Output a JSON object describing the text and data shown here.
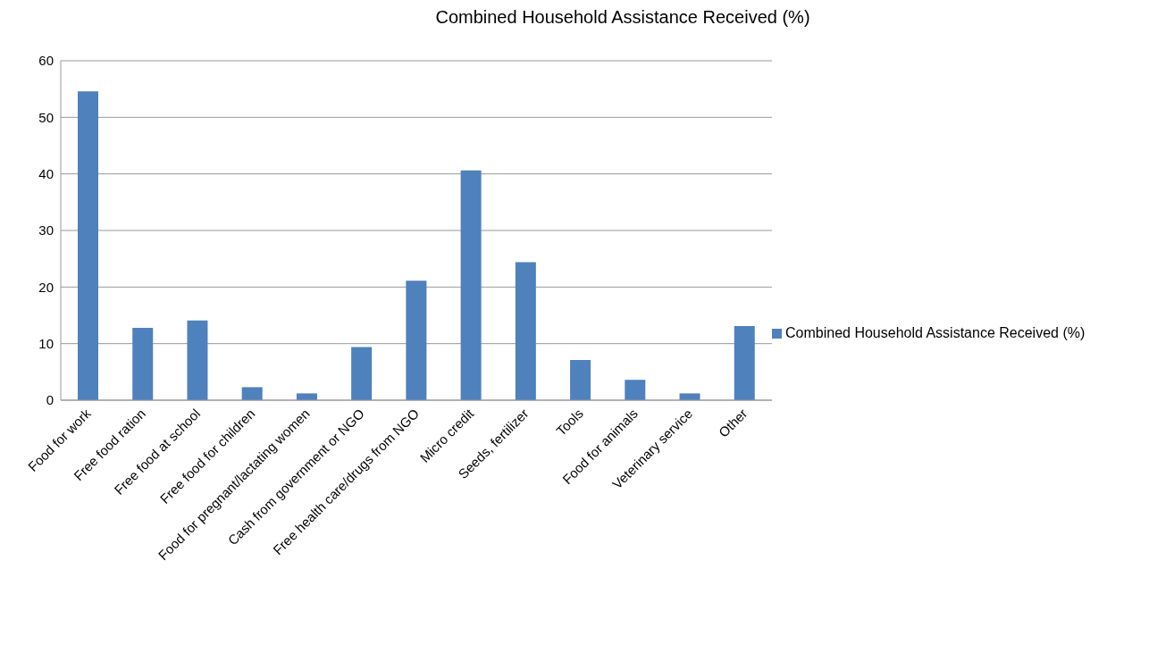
{
  "chart_data": {
    "type": "bar",
    "title": "Combined Household Assistance Received (%)",
    "categories": [
      "Food for work",
      "Free food ration",
      "Free food at school",
      "Free food for children",
      "Food for pregnant/lactating women",
      "Cash from government or NGO",
      "Free health care/drugs from NGO",
      "Micro credit",
      "Seeds, fertilizer",
      "Tools",
      "Food for animals",
      "Veterinary service",
      "Other"
    ],
    "series": [
      {
        "name": "Combined Household Assistance Received (%)",
        "color": "#4f81bd",
        "values": [
          54.6,
          12.8,
          14.1,
          2.3,
          1.2,
          9.4,
          21.1,
          40.6,
          24.4,
          7.1,
          3.6,
          1.2,
          13.1
        ]
      }
    ],
    "ylim": [
      0,
      60
    ],
    "yticks": [
      0,
      10,
      20,
      30,
      40,
      50,
      60
    ],
    "grid": "y",
    "legend": "right"
  }
}
